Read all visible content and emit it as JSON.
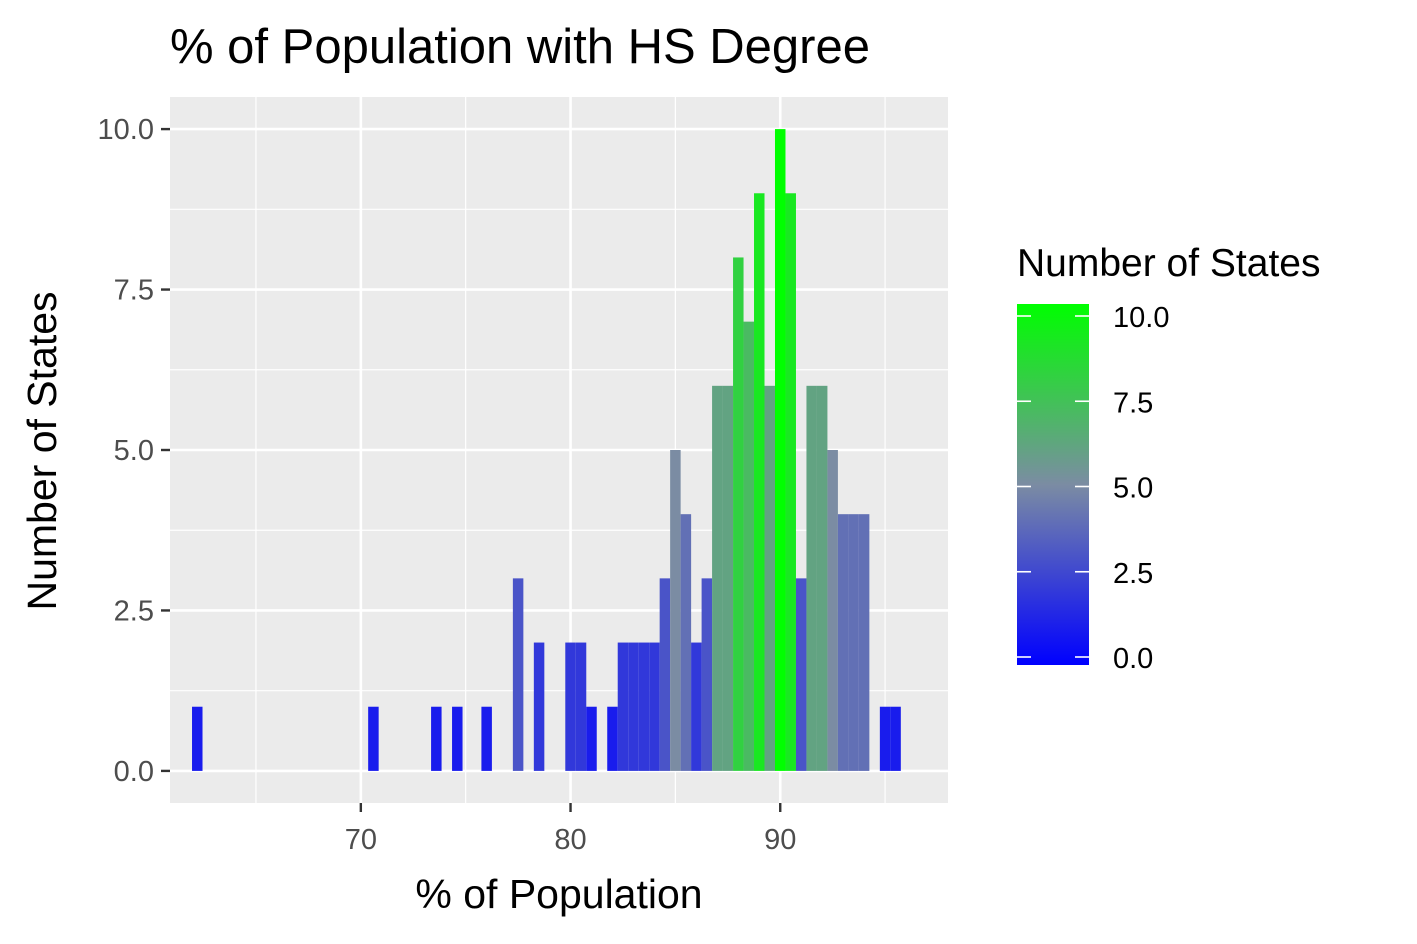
{
  "chart_data": {
    "type": "bar",
    "title": "% of Population with HS Degree",
    "xlabel": "% of Population",
    "ylabel": "Number of States",
    "xlim": [
      60.9,
      98.0
    ],
    "ylim": [
      -0.5,
      10.5
    ],
    "x_ticks": [
      70,
      80,
      90
    ],
    "y_ticks": [
      0.0,
      2.5,
      5.0,
      7.5,
      10.0
    ],
    "x_tick_labels": [
      "70",
      "80",
      "90"
    ],
    "y_tick_labels": [
      "0.0",
      "2.5",
      "5.0",
      "7.5",
      "10.0"
    ],
    "bin_width": 0.5,
    "grid": true,
    "legend": {
      "title": "Number of States",
      "position": "right",
      "type": "colorbar",
      "ticks": [
        0.0,
        2.5,
        5.0,
        7.5,
        10.0
      ],
      "tick_labels": [
        "0.0",
        "2.5",
        "5.0",
        "7.5",
        "10.0"
      ],
      "low_color": "#0000ff",
      "high_color": "#00ff00"
    },
    "colors": {
      "panel": "#ebebeb",
      "grid": "#ffffff",
      "tick": "#333333"
    },
    "x": [
      62.2,
      70.6,
      73.6,
      74.6,
      76.0,
      77.5,
      78.5,
      80.0,
      80.5,
      81.0,
      82.0,
      82.5,
      83.0,
      83.5,
      84.0,
      84.5,
      85.0,
      85.5,
      86.0,
      86.5,
      87.0,
      87.5,
      88.0,
      88.5,
      89.0,
      89.5,
      90.0,
      90.5,
      91.0,
      91.5,
      92.0,
      92.5,
      93.0,
      93.5,
      94.0,
      95.0,
      95.5
    ],
    "values": [
      1,
      1,
      1,
      1,
      1,
      3,
      2,
      2,
      2,
      1,
      1,
      2,
      2,
      2,
      2,
      3,
      5,
      4,
      2,
      3,
      6,
      6,
      8,
      7,
      9,
      6,
      10,
      9,
      3,
      6,
      6,
      5,
      4,
      4,
      4,
      1,
      1
    ]
  }
}
